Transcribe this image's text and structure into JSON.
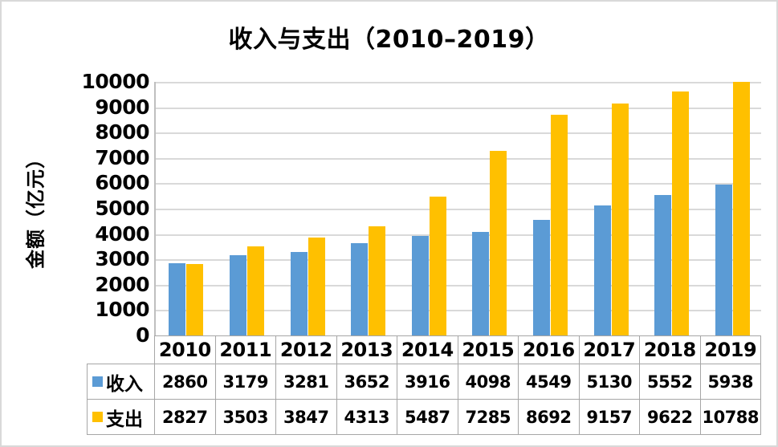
{
  "chart_data": {
    "type": "bar",
    "title": "收入与支出（2010–2019）",
    "ylabel": "金额（亿元）",
    "xlabel": "",
    "categories": [
      "2010",
      "2011",
      "2012",
      "2013",
      "2014",
      "2015",
      "2016",
      "2017",
      "2018",
      "2019"
    ],
    "series": [
      {
        "name": "收入",
        "color": "#5B9BD5",
        "values": [
          2860,
          3179,
          3281,
          3652,
          3916,
          4098,
          4549,
          5130,
          5552,
          5938
        ]
      },
      {
        "name": "支出",
        "color": "#FFC000",
        "values": [
          2827,
          3503,
          3847,
          4313,
          5487,
          7285,
          8692,
          9157,
          9622,
          10788
        ]
      }
    ],
    "ylim": [
      0,
      10000
    ],
    "ytick_step": 1000,
    "grid": true,
    "legend_position": "data-table-left",
    "data_table": true,
    "note_values_above_ymax_clipped": true
  },
  "colors": {
    "income_bar": "#5B9BD5",
    "expenditure_bar": "#FFC000",
    "gridline": "#D9D9D9",
    "axis_line": "#BFBFBF",
    "table_border": "#A6A6A6",
    "text": "#000000",
    "background": "#FFFFFF",
    "outer_border": "#D9D9D9"
  }
}
